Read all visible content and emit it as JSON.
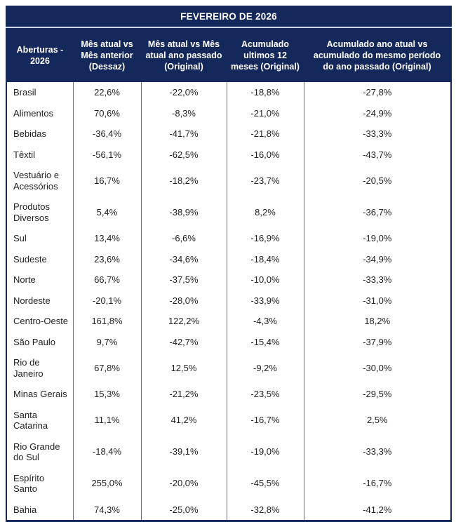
{
  "chart_data": {
    "type": "table",
    "title": "FEVEREIRO DE 2026",
    "columns": [
      "Aberturas - 2026",
      "Mês atual vs Mês anterior (Dessaz)",
      "Mês atual vs Mês atual ano passado (Original)",
      "Acumulado ultimos 12 meses (Original)",
      "Acumulado ano atual vs acumulado do mesmo período do ano passado (Original)"
    ],
    "rows": [
      {
        "label": "Brasil",
        "values": [
          "22,6%",
          "-22,0%",
          "-18,8%",
          "-27,8%"
        ]
      },
      {
        "label": "Alimentos",
        "values": [
          "70,6%",
          "-8,3%",
          "-21,0%",
          "-24,9%"
        ]
      },
      {
        "label": "Bebidas",
        "values": [
          "-36,4%",
          "-41,7%",
          "-21,8%",
          "-33,3%"
        ]
      },
      {
        "label": "Têxtil",
        "values": [
          "-56,1%",
          "-62,5%",
          "-16,0%",
          "-43,7%"
        ]
      },
      {
        "label": "Vestuário e Acessórios",
        "values": [
          "16,7%",
          "-18,2%",
          "-23,7%",
          "-20,5%"
        ]
      },
      {
        "label": "Produtos Diversos",
        "values": [
          "5,4%",
          "-38,9%",
          "8,2%",
          "-36,7%"
        ]
      },
      {
        "label": "Sul",
        "values": [
          "13,4%",
          "-6,6%",
          "-16,9%",
          "-19,0%"
        ]
      },
      {
        "label": "Sudeste",
        "values": [
          "23,6%",
          "-34,6%",
          "-18,4%",
          "-34,9%"
        ]
      },
      {
        "label": "Norte",
        "values": [
          "66,7%",
          "-37,5%",
          "-10,0%",
          "-33,3%"
        ]
      },
      {
        "label": "Nordeste",
        "values": [
          "-20,1%",
          "-28,0%",
          "-33,9%",
          "-31,0%"
        ]
      },
      {
        "label": "Centro-Oeste",
        "values": [
          "161,8%",
          "122,2%",
          "-4,3%",
          "18,2%"
        ]
      },
      {
        "label": "São Paulo",
        "values": [
          "9,7%",
          "-42,7%",
          "-15,4%",
          "-37,9%"
        ]
      },
      {
        "label": "Rio de Janeiro",
        "values": [
          "67,8%",
          "12,5%",
          "-9,2%",
          "-30,0%"
        ]
      },
      {
        "label": "Minas Gerais",
        "values": [
          "15,3%",
          "-21,2%",
          "-23,5%",
          "-29,5%"
        ]
      },
      {
        "label": "Santa Catarina",
        "values": [
          "11,1%",
          "41,2%",
          "-16,7%",
          "2,5%"
        ]
      },
      {
        "label": "Rio Grande do Sul",
        "values": [
          "-18,4%",
          "-39,1%",
          "-19,0%",
          "-33,3%"
        ]
      },
      {
        "label": "Espírito Santo",
        "values": [
          "255,0%",
          "-20,0%",
          "-45,5%",
          "-16,7%"
        ]
      },
      {
        "label": "Bahia",
        "values": [
          "74,3%",
          "-25,0%",
          "-32,8%",
          "-41,2%"
        ]
      }
    ]
  },
  "colors": {
    "header_bg": "#14285c",
    "header_text": "#ffffff",
    "title_divider": "#c9d6ec",
    "grid_line": "#6f6f6f",
    "body_text": "#1f1f1f",
    "body_bg": "#ffffff"
  }
}
